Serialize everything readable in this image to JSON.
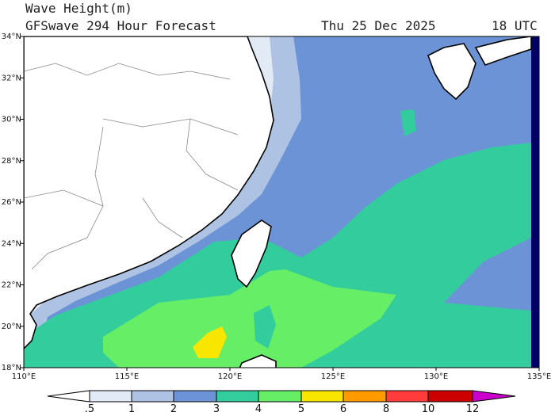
{
  "header": {
    "title": "Wave Height(m)",
    "subtitle": "GFSwave 294 Hour Forecast",
    "date": "Thu 25 Dec 2025",
    "time": "18 UTC"
  },
  "map": {
    "lat_labels": [
      "18°N",
      "20°N",
      "22°N",
      "24°N",
      "26°N",
      "28°N",
      "30°N",
      "32°N",
      "34°N"
    ],
    "lon_labels": [
      "110°E",
      "115°E",
      "120°E",
      "125°E",
      "130°E",
      "135°E"
    ]
  },
  "legend": {
    "labels": [
      ".5",
      "1",
      "2",
      "3",
      "4",
      "5",
      "6",
      "8",
      "10",
      "12"
    ],
    "colors": [
      "#ffffff",
      "#e2eaf6",
      "#aec3e3",
      "#6c93d6",
      "#33cc9c",
      "#66ee66",
      "#f8e500",
      "#ff9a00",
      "#ff3c3c",
      "#cc0000",
      "#cc00cc"
    ]
  }
}
